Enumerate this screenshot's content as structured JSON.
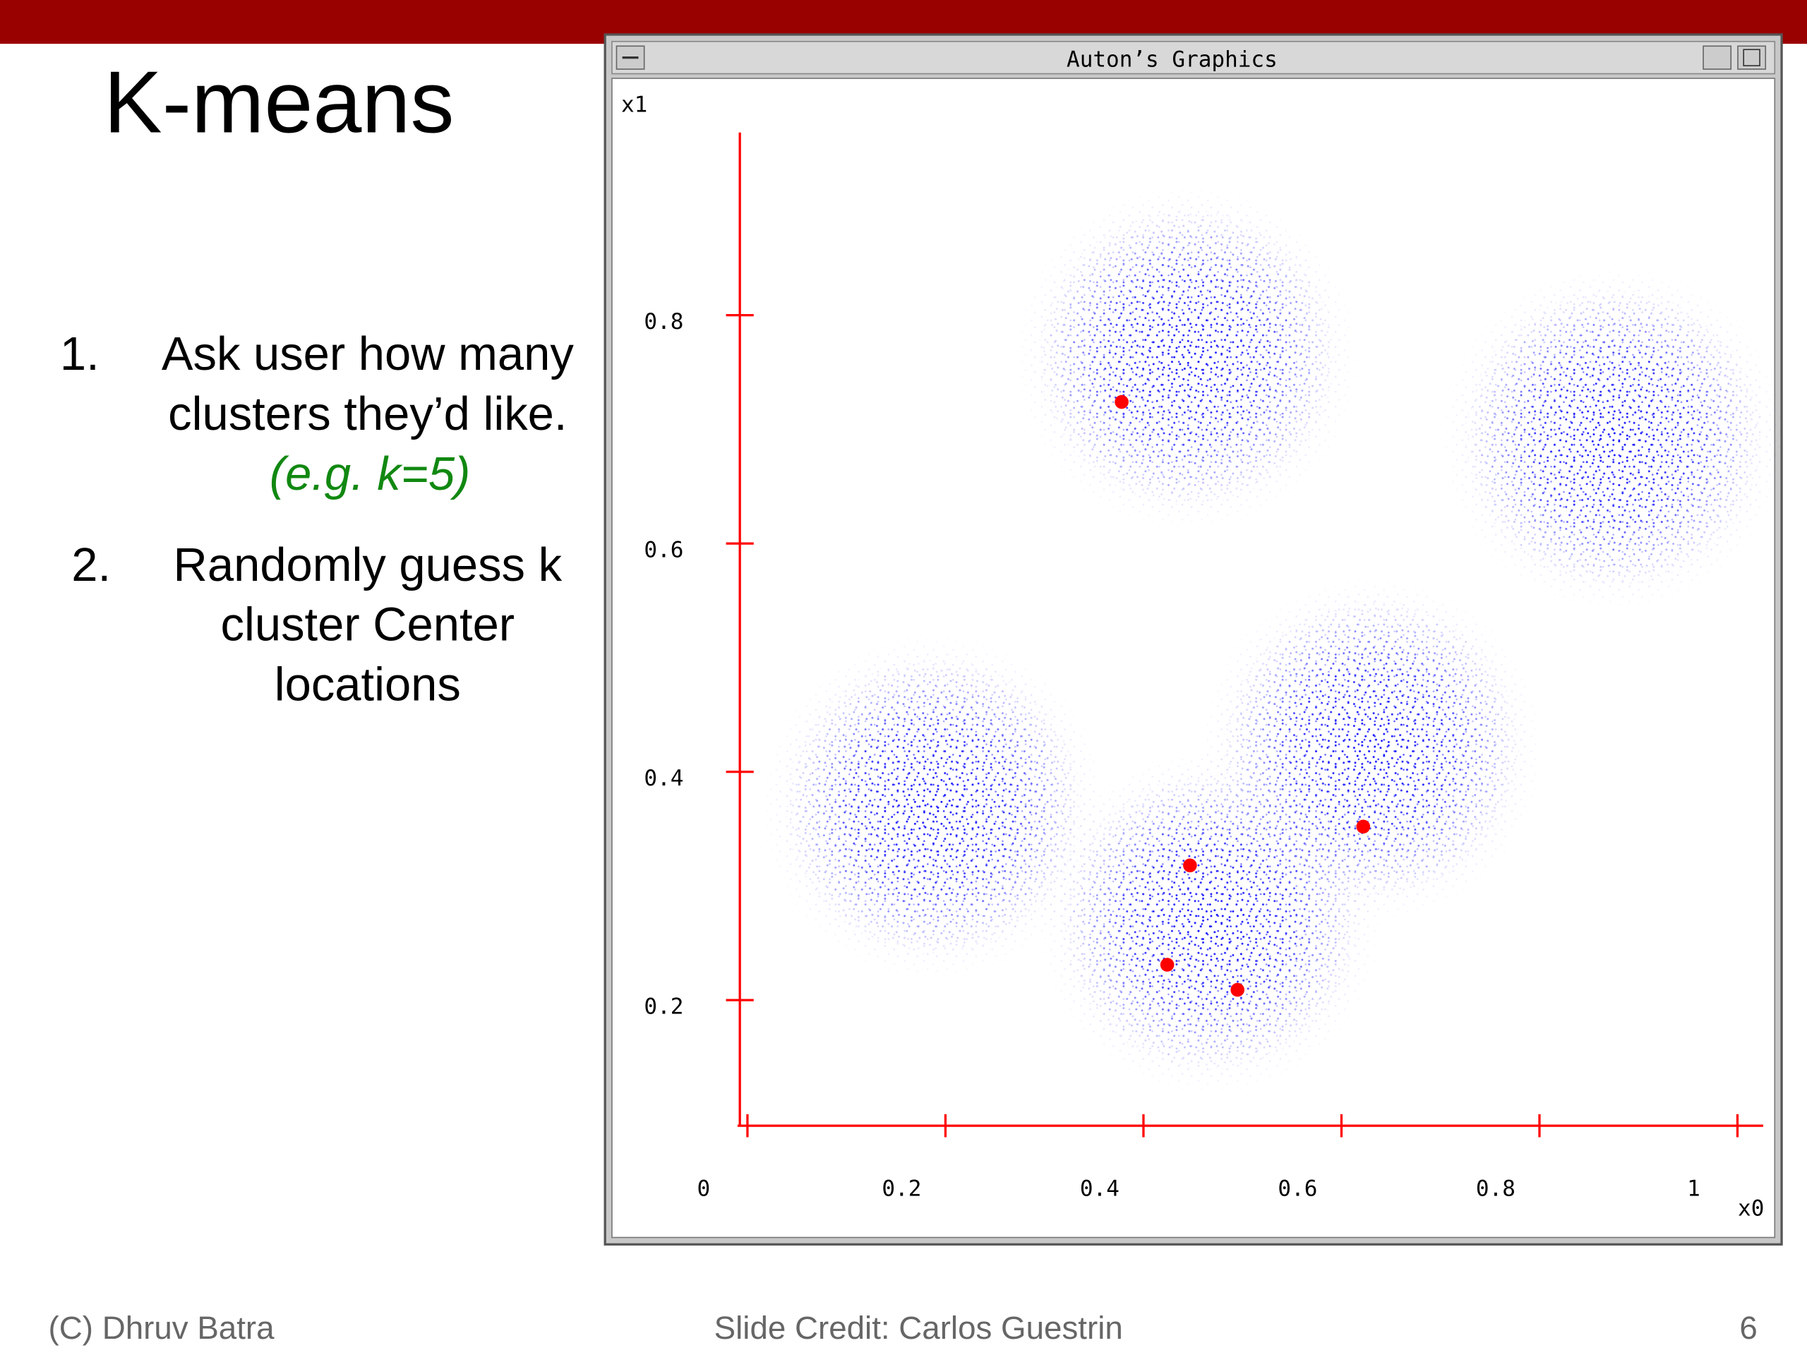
{
  "slide": {
    "title": "K-means",
    "items": [
      {
        "number": "1.",
        "lines": [
          "Ask user how many",
          "clusters they’d like."
        ],
        "note": "(e.g. k=5)"
      },
      {
        "number": "2.",
        "lines": [
          "Randomly guess k",
          "cluster Center",
          "locations"
        ]
      }
    ],
    "footer": {
      "left": "(C) Dhruv Batra",
      "center": "Slide Credit: Carlos Guestrin",
      "page": "6"
    }
  },
  "window": {
    "title": "Auton’s Graphics"
  },
  "chart_data": {
    "type": "scatter",
    "xlabel": "x0",
    "ylabel": "x1",
    "x": [
      0.378,
      0.447,
      0.424,
      0.495,
      0.622
    ],
    "values": [
      0.724,
      0.318,
      0.231,
      0.209,
      0.352
    ],
    "color": "#ff0000",
    "axis_color": "#ff0000",
    "xlim": [
      -0.01,
      1.026
    ],
    "ylim": [
      0.09,
      0.96
    ],
    "xticks": [
      0,
      0.2,
      0.4,
      0.6,
      0.8,
      1
    ],
    "yticks": [
      0.2,
      0.4,
      0.6,
      0.8
    ]
  }
}
